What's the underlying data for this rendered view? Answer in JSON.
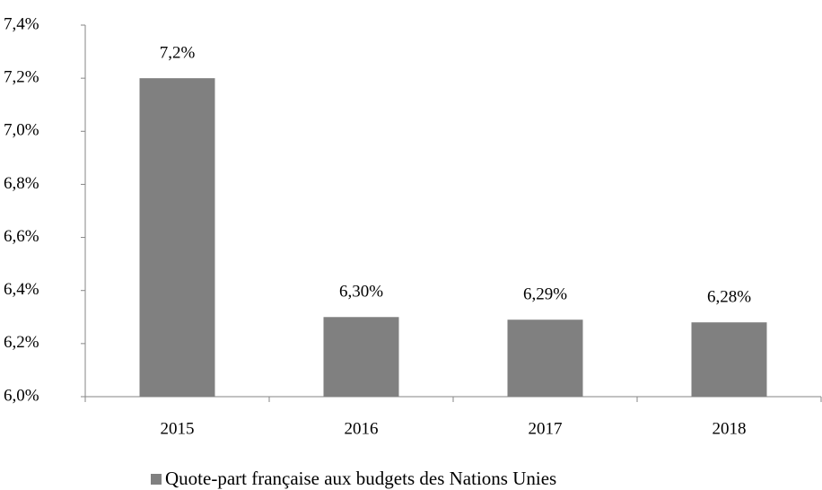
{
  "chart_data": {
    "type": "bar",
    "categories": [
      "2015",
      "2016",
      "2017",
      "2018"
    ],
    "series": [
      {
        "name": "Quote-part française aux budgets des Nations Unies",
        "color": "#808080",
        "values": [
          7.2,
          6.3,
          6.29,
          6.28
        ],
        "value_labels": [
          "7,2%",
          "6,30%",
          "6,29%",
          "6,28%"
        ]
      }
    ],
    "ylim": [
      6.0,
      7.4
    ],
    "yticks": [
      {
        "value": 6.0,
        "label": "6,0%"
      },
      {
        "value": 6.2,
        "label": "6,2%"
      },
      {
        "value": 6.4,
        "label": "6,4%"
      },
      {
        "value": 6.6,
        "label": "6,6%"
      },
      {
        "value": 6.8,
        "label": "6,8%"
      },
      {
        "value": 7.0,
        "label": "7,0%"
      },
      {
        "value": 7.2,
        "label": "7,2%"
      },
      {
        "value": 7.4,
        "label": "7,4%"
      }
    ],
    "legend": "bottom"
  }
}
